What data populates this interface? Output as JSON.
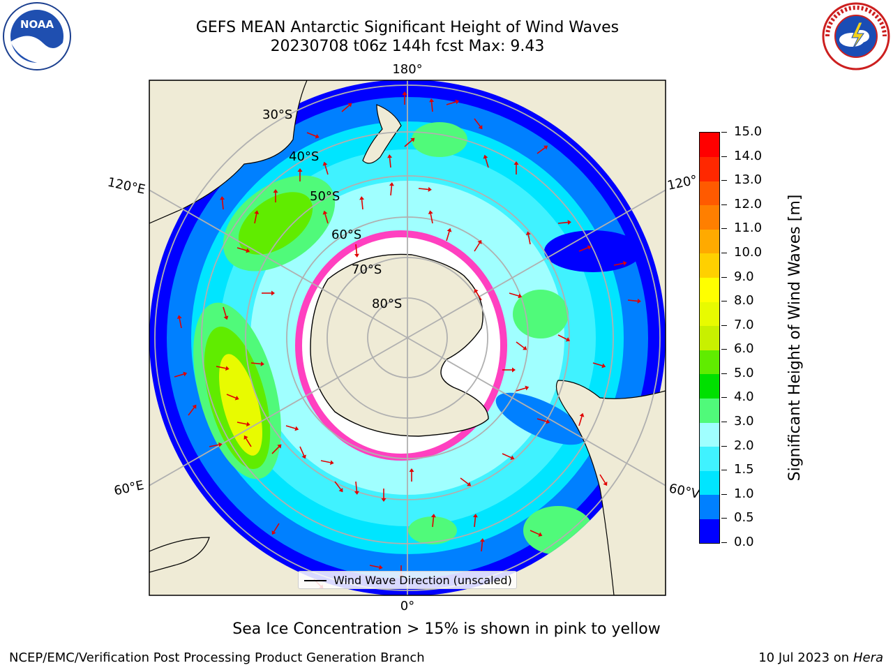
{
  "header": {
    "title_line1": "GEFS MEAN Antarctic Significant Height of Wind Waves",
    "title_line2": "20230708 t06z 144h fcst   Max: 9.43"
  },
  "logos": {
    "left": {
      "icon": "noaa-logo-icon",
      "text": "NOAA"
    },
    "right": {
      "icon": "nws-logo-icon",
      "text": "NATIONAL WEATHER SERVICE"
    }
  },
  "map": {
    "projection": "south-polar-stereographic",
    "longitude_labels": {
      "top": "180°",
      "bottom": "0°",
      "upper_left": "120°E",
      "lower_left": "60°E",
      "upper_right": "120°",
      "lower_right": "60°V"
    },
    "latitude_labels": [
      "30°S",
      "40°S",
      "50°S",
      "60°S",
      "70°S",
      "80°S"
    ],
    "colors": {
      "land": "#efebd6",
      "ocean_none": "#ffffff",
      "gridline": "#b0b0b0",
      "arrow": "#e00000",
      "coast": "#000000"
    }
  },
  "legend": {
    "label": "Wind Wave Direction (unscaled)"
  },
  "colorbar": {
    "title": "Significant Height of Wind Waves [m]",
    "ticks": [
      "0.0",
      "0.5",
      "1.0",
      "1.5",
      "2.0",
      "3.0",
      "4.0",
      "5.0",
      "6.0",
      "7.0",
      "8.0",
      "9.0",
      "10.0",
      "11.0",
      "12.0",
      "13.0",
      "14.0",
      "15.0"
    ],
    "colors": [
      "#0000ff",
      "#0080ff",
      "#00e5ff",
      "#40f2ff",
      "#a0ffff",
      "#50fa7a",
      "#00e000",
      "#60ec00",
      "#c8f000",
      "#e8fb00",
      "#ffff00",
      "#ffd000",
      "#ffaa00",
      "#ff7f00",
      "#ff5a00",
      "#ff2800",
      "#ff0000"
    ]
  },
  "notes": {
    "ice": "Sea Ice Concentration > 15% is shown in pink to yellow"
  },
  "footer": {
    "left": "NCEP/EMC/Verification Post Processing Product Generation Branch",
    "right_date": "10 Jul 2023 on ",
    "right_host": "Hera"
  }
}
